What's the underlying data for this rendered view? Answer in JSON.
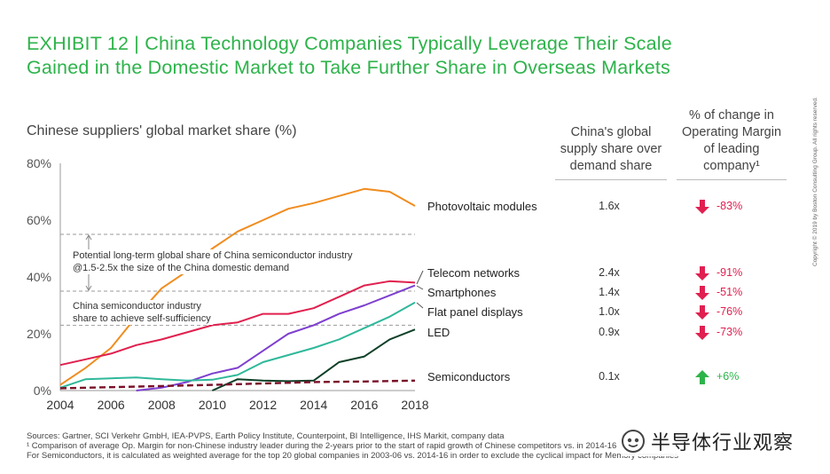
{
  "title": {
    "line1": "EXHIBIT 12 | China Technology Companies Typically Leverage Their Scale",
    "line2": "Gained in the Domestic Market to Take Further Share in Overseas Markets"
  },
  "chart_subtitle": "Chinese suppliers' global market share (%)",
  "columns": {
    "ratio_header": [
      "China's global",
      "supply share over",
      "demand share"
    ],
    "margin_header": [
      "% of change in",
      "Operating Margin",
      "of leading",
      "company¹"
    ]
  },
  "annotations": {
    "long_term": [
      "Potential long-term global share of China semiconductor industry",
      "@1.5-2.5x the size of the China domestic demand"
    ],
    "self_sufficiency": [
      "China semiconductor industry",
      "share to achieve self-sufficiency"
    ]
  },
  "rows": [
    {
      "label": "Photovoltaic modules",
      "ratio": "1.6x",
      "change": "-83%",
      "direction": "down"
    },
    {
      "label": "Telecom networks",
      "ratio": "2.4x",
      "change": "-91%",
      "direction": "down"
    },
    {
      "label": "Smartphones",
      "ratio": "1.4x",
      "change": "-51%",
      "direction": "down"
    },
    {
      "label": "Flat panel displays",
      "ratio": "1.0x",
      "change": "-76%",
      "direction": "down"
    },
    {
      "label": "LED",
      "ratio": "0.9x",
      "change": "-73%",
      "direction": "down"
    },
    {
      "label": "Semiconductors",
      "ratio": "0.1x",
      "change": "+6%",
      "direction": "up"
    }
  ],
  "footer": [
    "Sources: Gartner, SCI Verkehr GmbH, IEA-PVPS, Earth Policy Institute, Counterpoint, BI Intelligence, IHS Markit, company data",
    "¹ Comparison of average Op. Margin for non-Chinese industry leader during the 2-years prior to the start of rapid growth of Chinese competitors vs. in 2014-16",
    "For Semiconductors, it is calculated as weighted average for the top 20 global companies in 2003-06 vs. 2014-16 in order to exclude the cyclical impact for Memory companies"
  ],
  "copyright": "Copyright © 2019 by Boston Consulting Group. All rights reserved.",
  "watermark": "半导体行业观察",
  "colors": {
    "title": "#2db34a",
    "down": "#e02050",
    "up": "#2db34a"
  },
  "chart_data": {
    "type": "line",
    "x_ticks": [
      "2004",
      "2006",
      "2008",
      "2010",
      "2012",
      "2014",
      "2016",
      "2018"
    ],
    "y_ticks": [
      "0%",
      "20%",
      "40%",
      "60%",
      "80%"
    ],
    "ylim": [
      0,
      80
    ],
    "xlim": [
      2004,
      2018
    ],
    "reference_lines": [
      55,
      35,
      23
    ],
    "series": [
      {
        "name": "Photovoltaic modules",
        "color": "#f08c1e",
        "dash": false,
        "x": [
          2004,
          2005,
          2006,
          2007,
          2008,
          2009,
          2010,
          2011,
          2012,
          2013,
          2014,
          2015,
          2016,
          2017,
          2018
        ],
        "y": [
          2,
          8,
          15,
          26,
          36,
          42,
          50,
          56,
          60,
          64,
          66,
          68.5,
          71,
          70,
          65
        ]
      },
      {
        "name": "Telecom networks",
        "color": "#e0204e",
        "dash": false,
        "x": [
          2004,
          2005,
          2006,
          2007,
          2008,
          2009,
          2010,
          2011,
          2012,
          2013,
          2014,
          2015,
          2016,
          2017,
          2018
        ],
        "y": [
          9,
          11,
          13,
          16,
          18,
          20.5,
          23,
          24,
          27,
          27,
          29,
          33,
          37,
          38.5,
          38
        ]
      },
      {
        "name": "Smartphones",
        "color": "#7e3fcf",
        "dash": false,
        "x": [
          2007,
          2008,
          2009,
          2010,
          2011,
          2012,
          2013,
          2014,
          2015,
          2016,
          2017,
          2018
        ],
        "y": [
          0,
          1,
          3,
          6,
          8,
          14,
          20,
          23,
          27,
          30,
          33.5,
          37
        ]
      },
      {
        "name": "Flat panel displays",
        "color": "#2fb89a",
        "dash": false,
        "x": [
          2004,
          2005,
          2006,
          2007,
          2008,
          2009,
          2010,
          2011,
          2012,
          2013,
          2014,
          2015,
          2016,
          2017,
          2018
        ],
        "y": [
          1,
          4,
          4.3,
          4.6,
          4,
          3.5,
          3.8,
          5.5,
          10,
          12.5,
          15,
          18,
          22,
          26,
          31
        ]
      },
      {
        "name": "LED",
        "color": "#0e4028",
        "dash": false,
        "x": [
          2010,
          2011,
          2012,
          2013,
          2014,
          2015,
          2016,
          2017,
          2018
        ],
        "y": [
          0,
          4,
          3.5,
          3.3,
          3.5,
          10,
          12,
          18,
          21.5
        ]
      },
      {
        "name": "Semiconductors",
        "color": "#7a1028",
        "dash": true,
        "x": [
          2004,
          2006,
          2008,
          2010,
          2012,
          2014,
          2016,
          2018
        ],
        "y": [
          0.8,
          1.2,
          1.6,
          2,
          2.5,
          3,
          3.2,
          3.5
        ]
      }
    ]
  }
}
